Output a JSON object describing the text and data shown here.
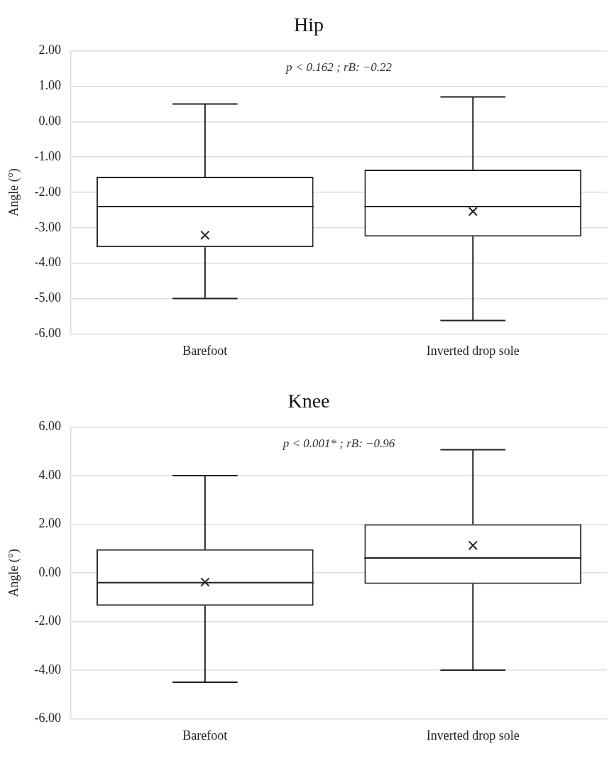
{
  "chart_data": [
    {
      "type": "box",
      "title": "Hip",
      "ylabel": "Angle (°)",
      "categories": [
        "Barefoot",
        "Inverted drop sole"
      ],
      "boxes": [
        {
          "low": -5.0,
          "q1": -3.55,
          "median": -2.4,
          "q3": -1.56,
          "high": 0.5,
          "mean": -3.21
        },
        {
          "low": -5.62,
          "q1": -3.25,
          "median": -2.4,
          "q3": -1.36,
          "high": 0.7,
          "mean": -2.54
        }
      ],
      "ylim": [
        -6,
        2
      ],
      "yticks": [
        {
          "value": -6,
          "label": "-6.00"
        },
        {
          "value": -5,
          "label": "-5.00"
        },
        {
          "value": -4,
          "label": "-4.00"
        },
        {
          "value": -3,
          "label": "-3.00"
        },
        {
          "value": -2,
          "label": "-2.00"
        },
        {
          "value": -1,
          "label": "-1.00"
        },
        {
          "value": 0,
          "label": "0.00"
        },
        {
          "value": 1,
          "label": "1.00"
        },
        {
          "value": 2,
          "label": "2.00"
        }
      ],
      "grid": "y",
      "legend": false,
      "marker": "cross",
      "annotations": [
        "p < 0.162 ; rB: −0.22"
      ]
    },
    {
      "type": "box",
      "title": "Knee",
      "ylabel": "Angle (°)",
      "categories": [
        "Barefoot",
        "Inverted drop sole"
      ],
      "boxes": [
        {
          "low": -4.5,
          "q1": -1.35,
          "median": -0.4,
          "q3": 0.97,
          "high": 4.0,
          "mean": -0.38
        },
        {
          "low": -4.0,
          "q1": -0.45,
          "median": 0.61,
          "q3": 2.0,
          "high": 5.07,
          "mean": 1.13
        }
      ],
      "ylim": [
        -6,
        6
      ],
      "yticks": [
        {
          "value": -6,
          "label": "-6.00"
        },
        {
          "value": -4,
          "label": "-4.00"
        },
        {
          "value": -2,
          "label": "-2.00"
        },
        {
          "value": 0,
          "label": "0.00"
        },
        {
          "value": 2,
          "label": "2.00"
        },
        {
          "value": 4,
          "label": "4.00"
        },
        {
          "value": 6,
          "label": "6.00"
        }
      ],
      "grid": "y",
      "legend": false,
      "marker": "cross",
      "annotations": [
        "p < 0.001* ; rB: −0.96"
      ]
    }
  ]
}
